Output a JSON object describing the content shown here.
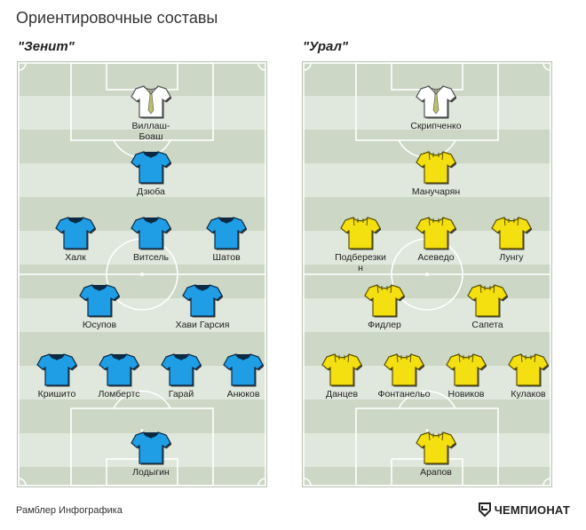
{
  "title": "Ориентировочные составы",
  "colors": {
    "zenit_kit": "#1f9ee6",
    "ural_kit": "#f4df10",
    "gk_kit": "#ffffff",
    "pitch_dark": "#ccd7c6",
    "pitch_light": "#e0e7dc"
  },
  "teams": [
    {
      "name": "\"Зенит\"",
      "players": [
        {
          "name": "Виллаш-\nБоаш",
          "kit": "gk-white-tie"
        },
        {
          "name": "Дзюба",
          "kit": "blue"
        },
        {
          "name": "Халк",
          "kit": "blue"
        },
        {
          "name": "Витсель",
          "kit": "blue"
        },
        {
          "name": "Шатов",
          "kit": "blue"
        },
        {
          "name": "Юсупов",
          "kit": "blue"
        },
        {
          "name": "Хави Гарсия",
          "kit": "blue"
        },
        {
          "name": "Кришито",
          "kit": "blue"
        },
        {
          "name": "Ломбертс",
          "kit": "blue"
        },
        {
          "name": "Гарай",
          "kit": "blue"
        },
        {
          "name": "Анюков",
          "kit": "blue"
        },
        {
          "name": "Лодыгин",
          "kit": "blue"
        }
      ]
    },
    {
      "name": "\"Урал\"",
      "players": [
        {
          "name": "Скрипченко",
          "kit": "gk-white-tie"
        },
        {
          "name": "Манучарян",
          "kit": "yellow"
        },
        {
          "name": "Подберезки\nн",
          "kit": "yellow"
        },
        {
          "name": "Асеведо",
          "kit": "yellow"
        },
        {
          "name": "Лунгу",
          "kit": "yellow"
        },
        {
          "name": "Фидлер",
          "kit": "yellow"
        },
        {
          "name": "Сапета",
          "kit": "yellow"
        },
        {
          "name": "Данцев",
          "kit": "yellow"
        },
        {
          "name": "Фонтанельо",
          "kit": "yellow"
        },
        {
          "name": "Новиков",
          "kit": "yellow"
        },
        {
          "name": "Кулаков",
          "kit": "yellow"
        },
        {
          "name": "Арапов",
          "kit": "yellow"
        }
      ]
    }
  ],
  "footer": {
    "source": "Рамблер Инфографика",
    "brand": "ЧЕМПИОНАТ"
  }
}
